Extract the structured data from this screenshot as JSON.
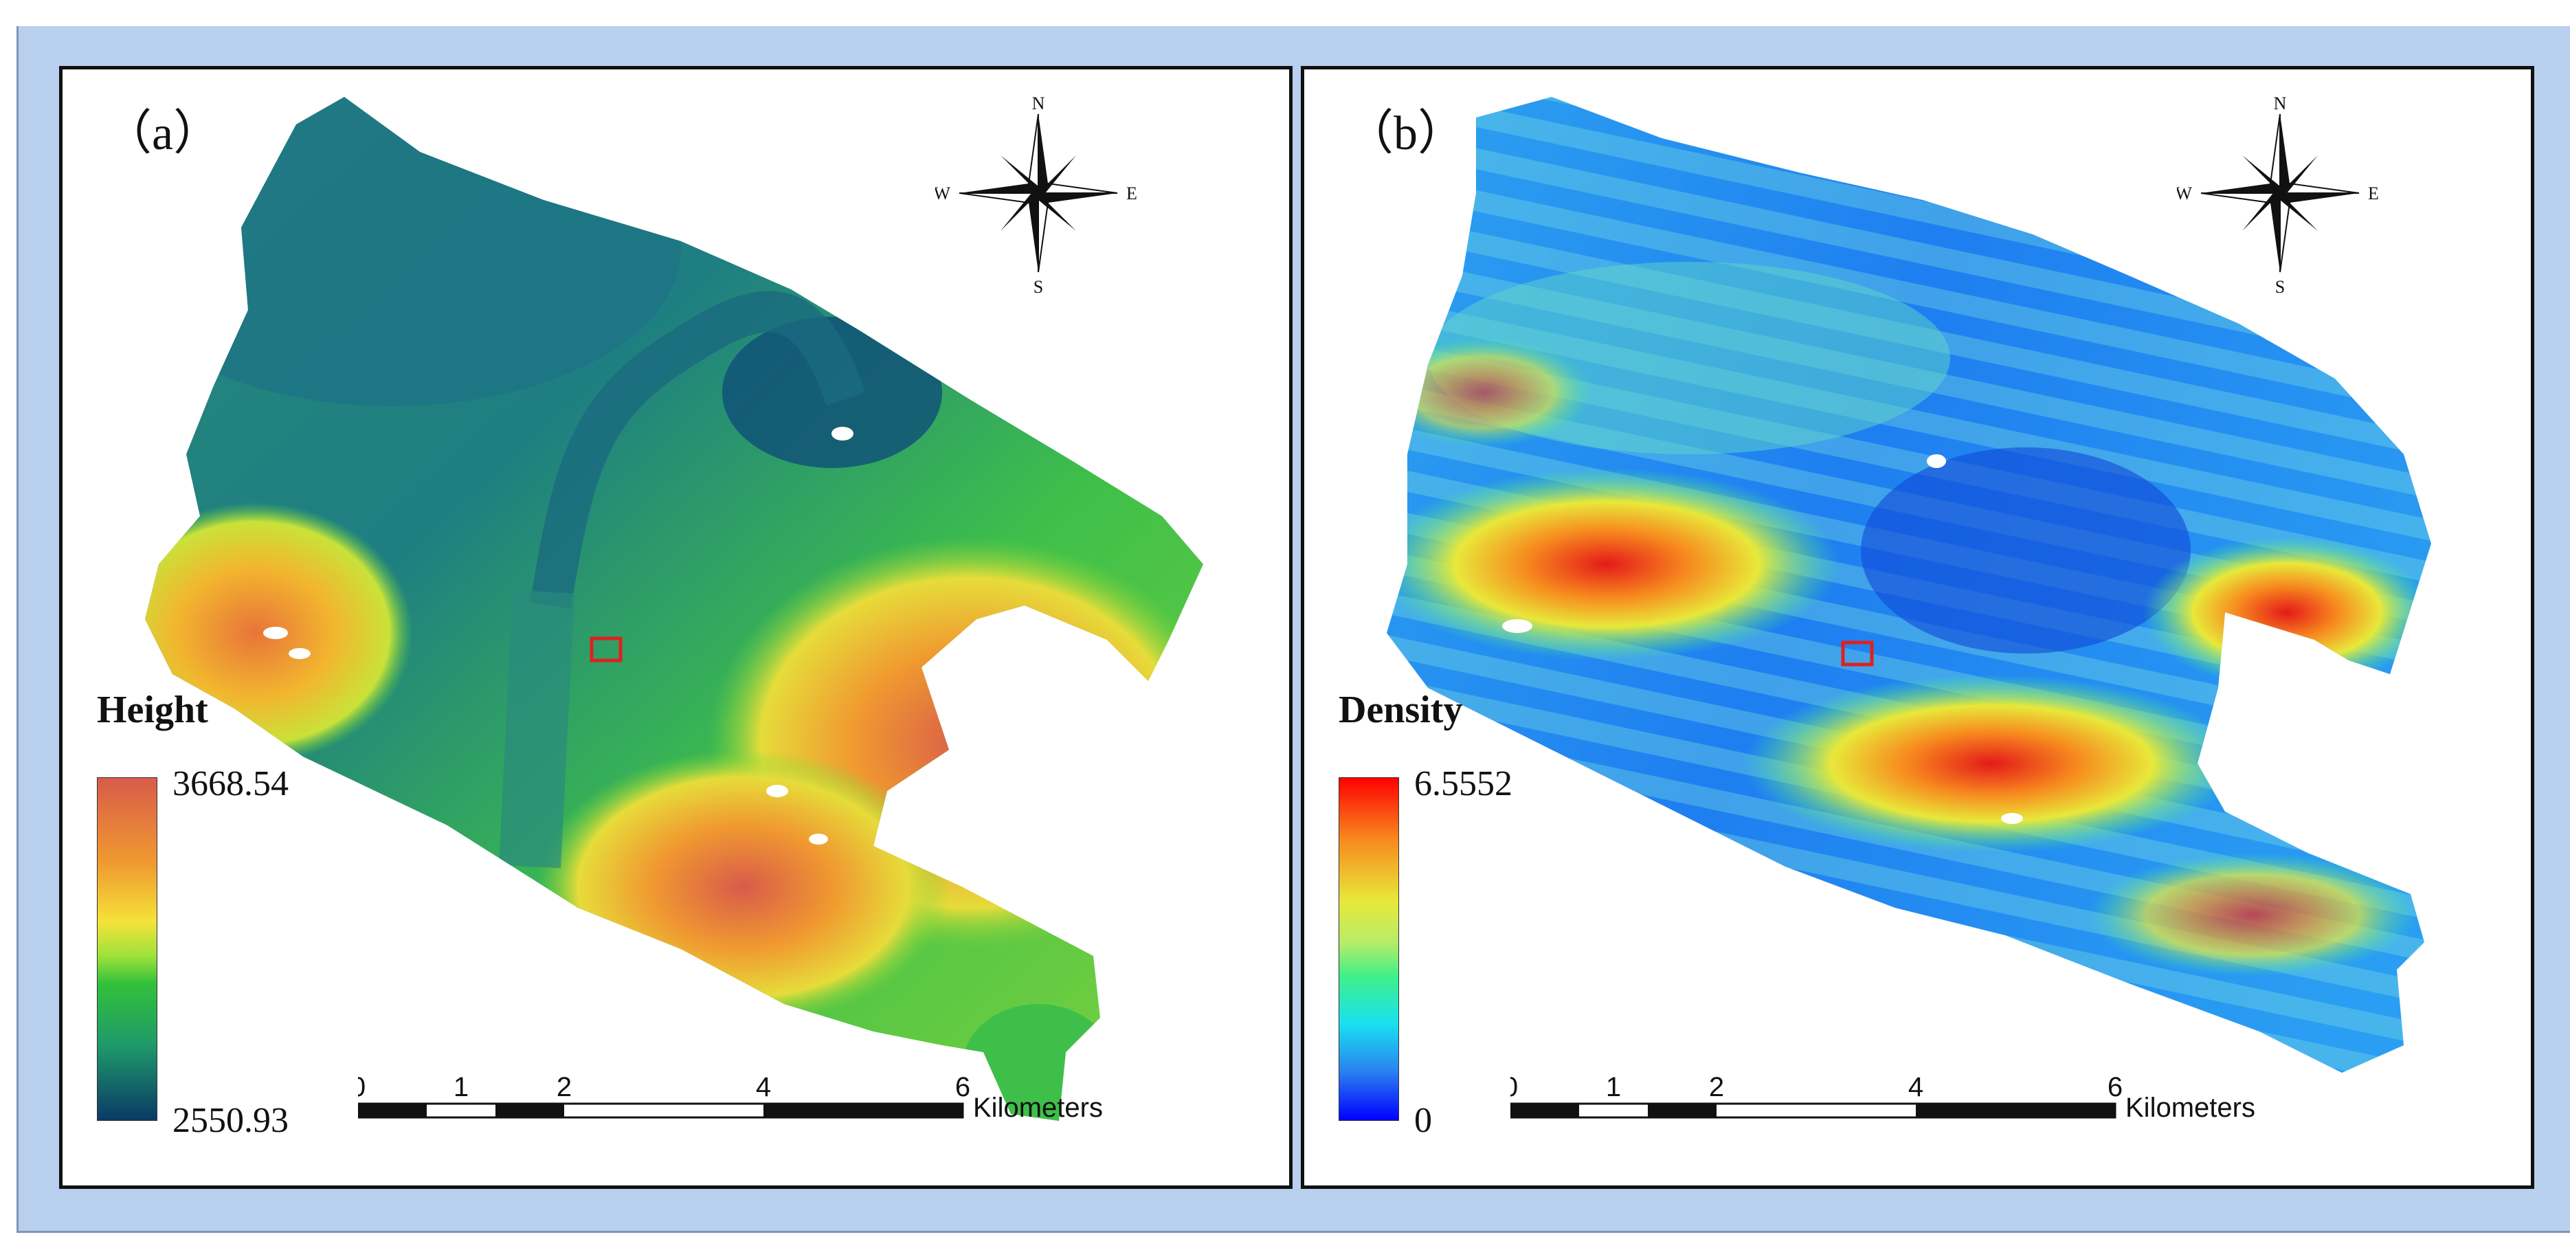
{
  "panels": [
    {
      "label": "（a）",
      "legend": {
        "title": "Height",
        "max": "3668.54",
        "min": "2550.93"
      },
      "compass": {
        "n": "N",
        "s": "S",
        "e": "E",
        "w": "W"
      },
      "scale": {
        "ticks": [
          "0",
          "1",
          "2",
          "4",
          "6"
        ],
        "unit": "Kilometers"
      },
      "colors": {
        "low": "#0b3a66",
        "mid": "#33c13a",
        "high": "#d95b4a",
        "marker": "#e02020"
      }
    },
    {
      "label": "（b）",
      "legend": {
        "title": "Density",
        "max": "6.5552",
        "min": "0"
      },
      "compass": {
        "n": "N",
        "s": "S",
        "e": "E",
        "w": "W"
      },
      "scale": {
        "ticks": [
          "0",
          "1",
          "2",
          "4",
          "6"
        ],
        "unit": "Kilometers"
      },
      "colors": {
        "low": "#0000ff",
        "mid": "#3ff08a",
        "high": "#ff0000",
        "marker": "#e02020"
      }
    }
  ]
}
